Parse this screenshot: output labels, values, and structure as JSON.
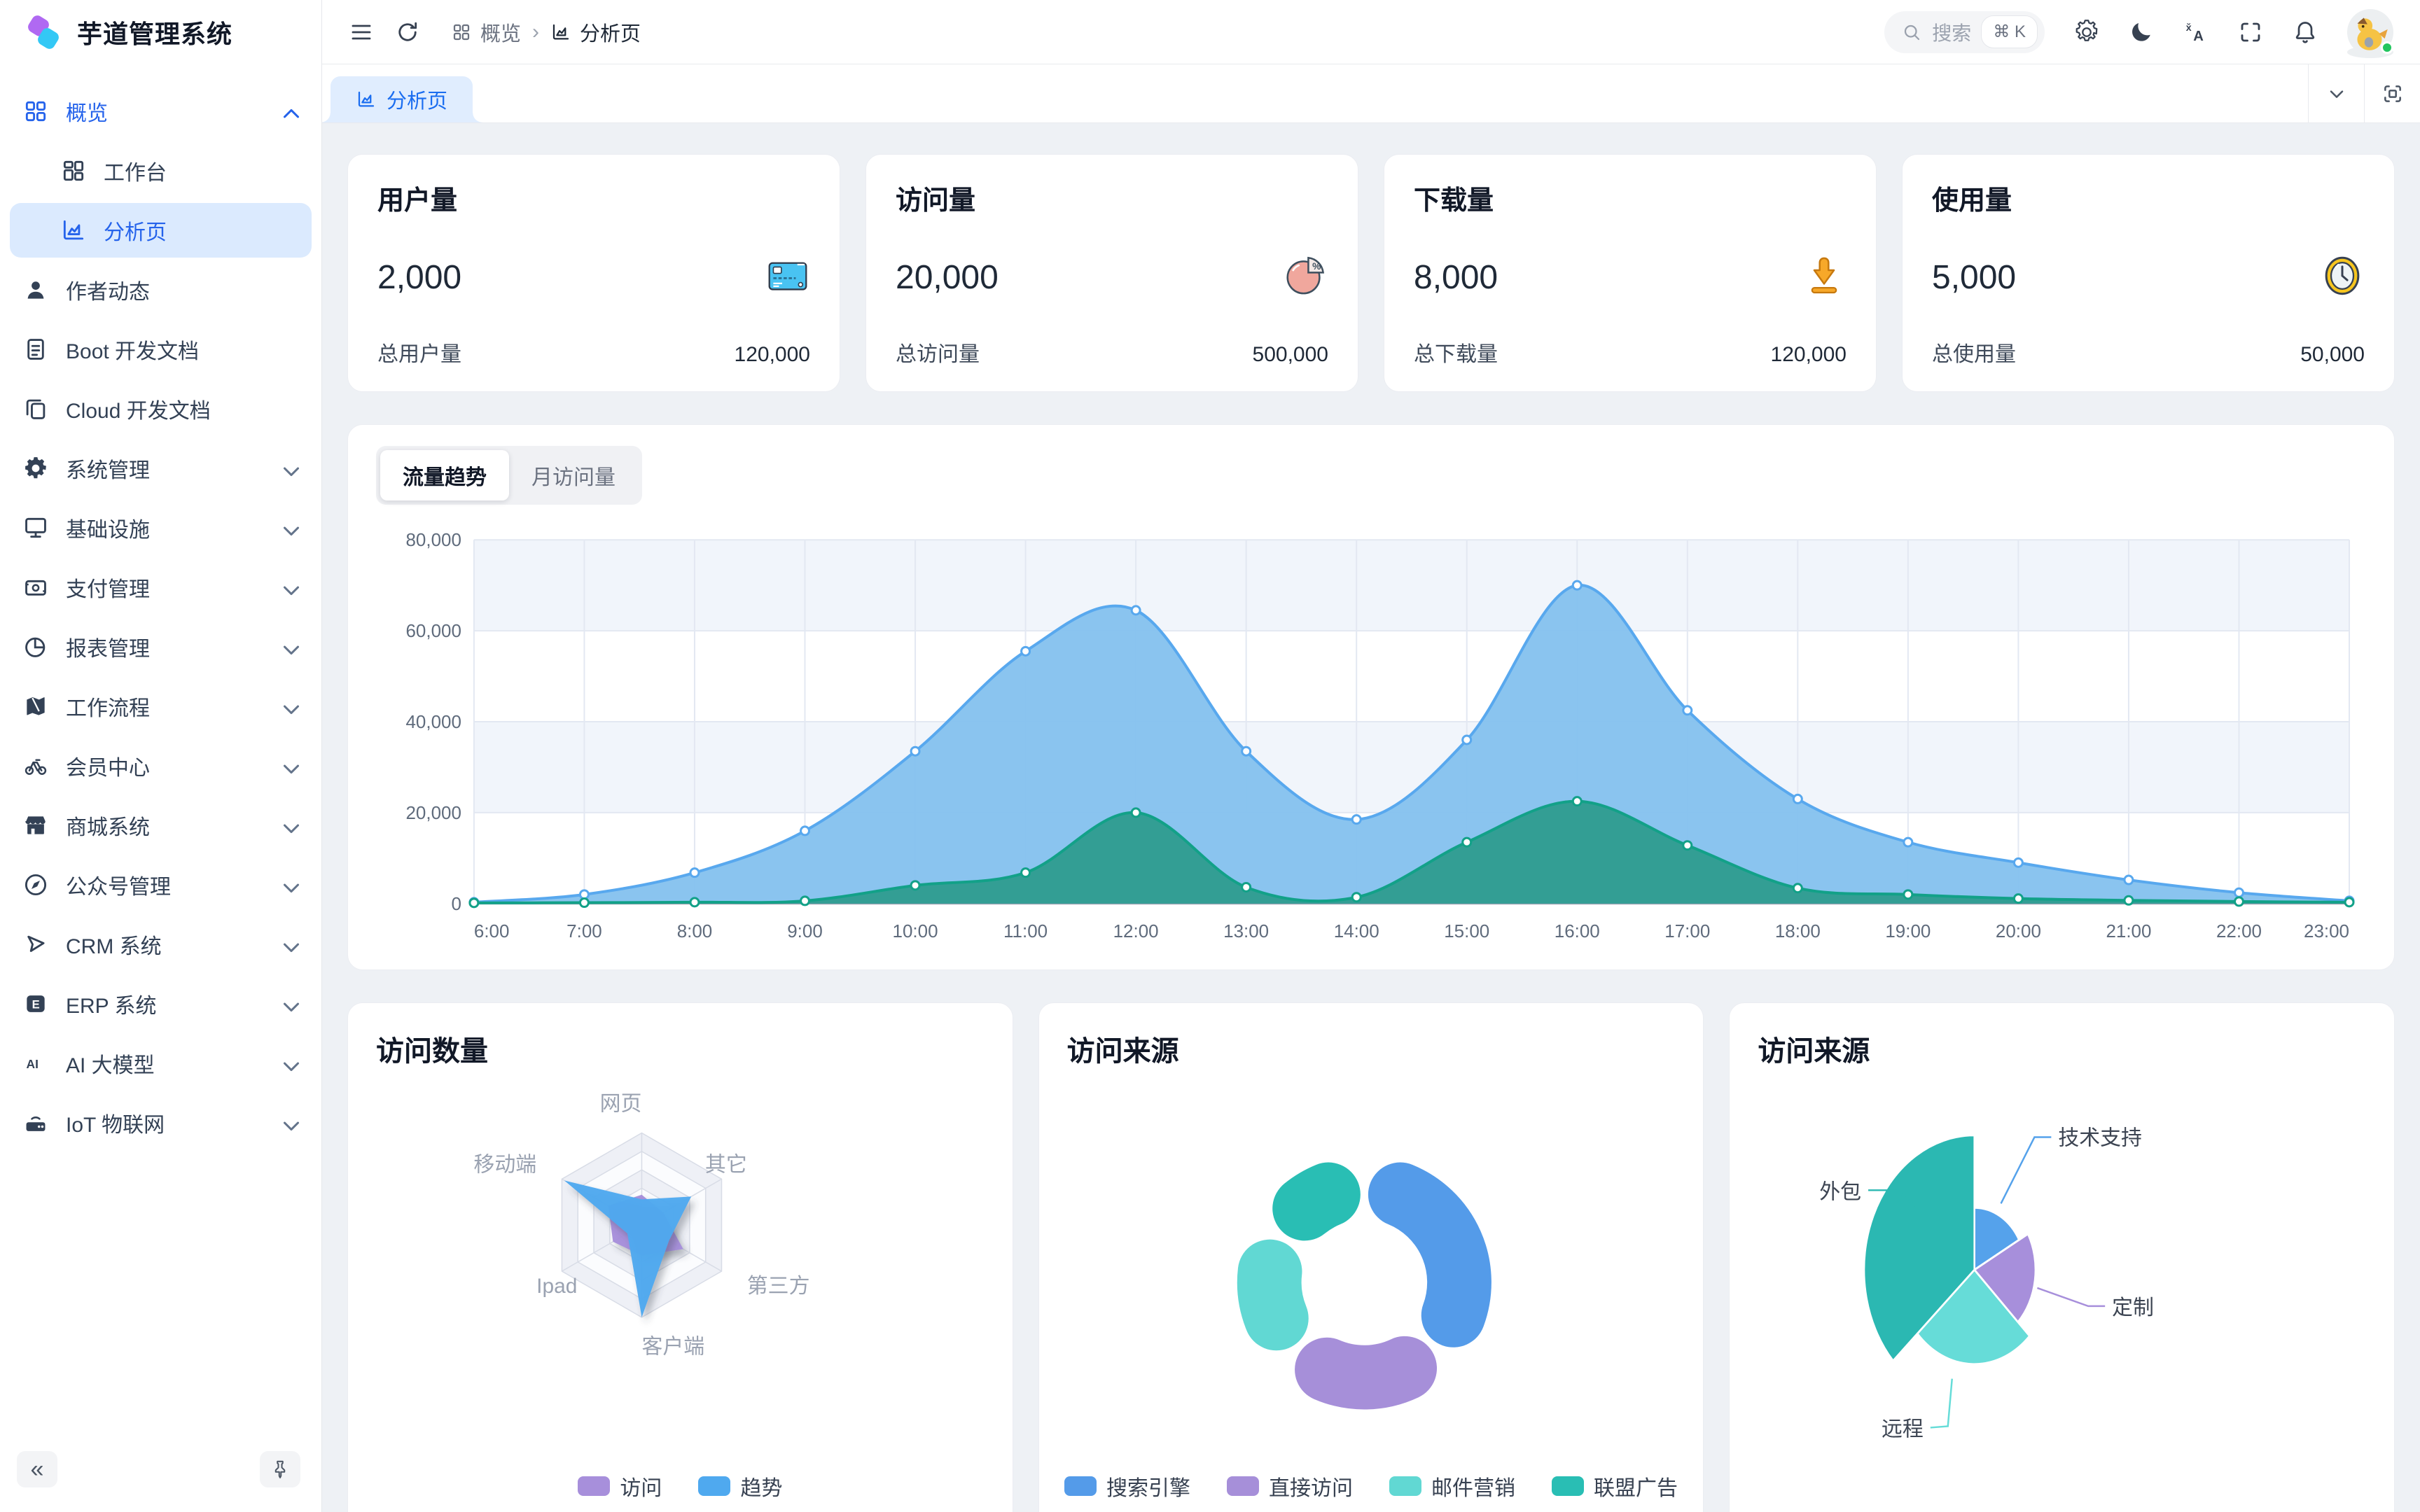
{
  "app": {
    "name": "芋道管理系统"
  },
  "sidebar": {
    "menu": [
      {
        "icon": "grid-icon",
        "label": "概览",
        "blue": true,
        "chevron": "up",
        "children": [
          {
            "icon": "workbench-icon",
            "label": "工作台",
            "active": false
          },
          {
            "icon": "chart-icon",
            "label": "分析页",
            "active": true
          }
        ]
      },
      {
        "icon": "user-icon",
        "label": "作者动态"
      },
      {
        "icon": "doc-icon",
        "label": "Boot 开发文档"
      },
      {
        "icon": "copy-icon",
        "label": "Cloud 开发文档"
      },
      {
        "icon": "gear-icon",
        "label": "系统管理",
        "chevron": "down"
      },
      {
        "icon": "monitor-icon",
        "label": "基础设施",
        "chevron": "down"
      },
      {
        "icon": "wallet-icon",
        "label": "支付管理",
        "chevron": "down"
      },
      {
        "icon": "pie-icon",
        "label": "报表管理",
        "chevron": "down"
      },
      {
        "icon": "flow-icon",
        "label": "工作流程",
        "chevron": "down"
      },
      {
        "icon": "bike-icon",
        "label": "会员中心",
        "chevron": "down"
      },
      {
        "icon": "store-icon",
        "label": "商城系统",
        "chevron": "down"
      },
      {
        "icon": "compass-icon",
        "label": "公众号管理",
        "chevron": "down"
      },
      {
        "icon": "crm-icon",
        "label": "CRM 系统",
        "chevron": "down"
      },
      {
        "icon": "erp-icon",
        "label": "ERP 系统",
        "chevron": "down"
      },
      {
        "icon": "ai-icon",
        "label": "AI 大模型",
        "chevron": "down"
      },
      {
        "icon": "iot-icon",
        "label": "IoT 物联网",
        "chevron": "down"
      }
    ],
    "footer": {
      "collapse_label": "«",
      "pin_icon": "pin-icon"
    }
  },
  "header": {
    "breadcrumb": [
      {
        "icon": "grid-icon",
        "label": "概览"
      },
      {
        "icon": "chart-icon",
        "label": "分析页"
      }
    ],
    "separator": "›",
    "search": {
      "placeholder": "搜索",
      "shortcut": "⌘ K"
    },
    "action_icons": [
      "settings-icon",
      "moon-icon",
      "translate-icon",
      "fullscreen-icon",
      "bell-icon"
    ],
    "avatar_status_color": "#22c55e"
  },
  "tabbar": {
    "tab_label": "分析页",
    "control_icons": [
      "chevron-down-icon",
      "fullscreen-exit-icon"
    ]
  },
  "stat_cards": [
    {
      "title": "用户量",
      "value": "2,000",
      "icon": "credit-card-icon",
      "footer_label": "总用户量",
      "footer_value": "120,000"
    },
    {
      "title": "访问量",
      "value": "20,000",
      "icon": "pie-percent-icon",
      "footer_label": "总访问量",
      "footer_value": "500,000"
    },
    {
      "title": "下载量",
      "value": "8,000",
      "icon": "download-icon",
      "footer_label": "总下载量",
      "footer_value": "120,000"
    },
    {
      "title": "使用量",
      "value": "5,000",
      "icon": "clock-icon",
      "footer_label": "总使用量",
      "footer_value": "50,000"
    }
  ],
  "trend_card": {
    "tabs": [
      {
        "label": "流量趋势",
        "active": true
      },
      {
        "label": "月访问量",
        "active": false
      }
    ]
  },
  "chart_data": [
    {
      "id": "traffic-trend",
      "type": "area",
      "x": [
        "6:00",
        "7:00",
        "8:00",
        "9:00",
        "10:00",
        "11:00",
        "12:00",
        "13:00",
        "14:00",
        "15:00",
        "16:00",
        "17:00",
        "18:00",
        "19:00",
        "20:00",
        "21:00",
        "22:00",
        "23:00"
      ],
      "ylim": [
        0,
        80000
      ],
      "yticks": [
        "0",
        "20,000",
        "40,000",
        "60,000",
        "80,000"
      ],
      "grid": true,
      "series": [
        {
          "name": "visits-blue",
          "color": "#58a8ee",
          "fill": "#84c1ee",
          "values": [
            300,
            2000,
            6800,
            16000,
            33500,
            55500,
            64500,
            33500,
            18500,
            36000,
            70000,
            42500,
            23000,
            13500,
            9000,
            5200,
            2400,
            600
          ]
        },
        {
          "name": "visits-green",
          "color": "#12a188",
          "fill": "#2e9c8e",
          "values": [
            150,
            200,
            300,
            600,
            4000,
            6800,
            20000,
            3600,
            1400,
            13500,
            22500,
            12800,
            3400,
            2000,
            1100,
            700,
            450,
            300
          ]
        }
      ]
    },
    {
      "id": "visit-count-radar",
      "type": "radar",
      "title": "访问数量",
      "axes": [
        "网页",
        "其它",
        "第三方",
        "客户端",
        "Ipad",
        "移动端"
      ],
      "max": 100,
      "series": [
        {
          "name": "访问",
          "color": "#a78fdb",
          "values": [
            33,
            27,
            52,
            33,
            36,
            42
          ]
        },
        {
          "name": "趋势",
          "color": "#4fa9ef",
          "values": [
            28,
            62,
            34,
            100,
            18,
            97
          ]
        }
      ],
      "legend_position": "bottom"
    },
    {
      "id": "visit-source-donut",
      "type": "pie",
      "title": "访问来源",
      "donut": true,
      "items": [
        {
          "name": "搜索引擎",
          "value": 1048,
          "color": "#549be9"
        },
        {
          "name": "直接访问",
          "value": 735,
          "color": "#a68fd9"
        },
        {
          "name": "邮件营销",
          "value": 580,
          "color": "#61d8d3"
        },
        {
          "name": "联盟广告",
          "value": 484,
          "color": "#29beb4"
        }
      ],
      "legend_position": "bottom"
    },
    {
      "id": "visit-source-rose",
      "type": "pie",
      "title": "访问来源",
      "rose": true,
      "items": [
        {
          "name": "技术支持",
          "value": 484,
          "color": "#55a2eb"
        },
        {
          "name": "定制",
          "value": 580,
          "color": "#a78fdb"
        },
        {
          "name": "远程",
          "value": 735,
          "color": "#66dcd8"
        },
        {
          "name": "外包",
          "value": 1048,
          "color": "#2bb8b2"
        }
      ]
    }
  ]
}
